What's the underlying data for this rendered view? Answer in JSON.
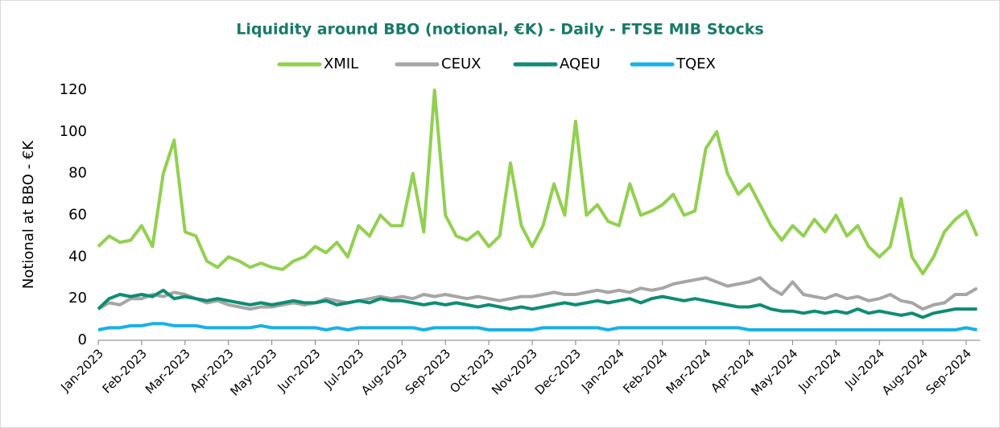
{
  "chart_data": {
    "type": "line",
    "title": "Liquidity around BBO (notional, €K)  - Daily - FTSE MIB Stocks",
    "y_label": "Notional at BBO - €K",
    "categories": [
      "Jan-2023",
      null,
      null,
      null,
      "Feb-2023",
      null,
      null,
      null,
      "Mar-2023",
      null,
      null,
      null,
      "Apr-2023",
      null,
      null,
      null,
      "May-2023",
      null,
      null,
      null,
      "Jun-2023",
      null,
      null,
      null,
      "Jul-2023",
      null,
      null,
      null,
      "Aug-2023",
      null,
      null,
      null,
      "Sep-2023",
      null,
      null,
      null,
      "Oct-2023",
      null,
      null,
      null,
      "Nov-2023",
      null,
      null,
      null,
      "Dec-2023",
      null,
      null,
      null,
      "Jan-2024",
      null,
      null,
      null,
      "Feb-2024",
      null,
      null,
      null,
      "Mar-2024",
      null,
      null,
      null,
      "Apr-2024",
      null,
      null,
      null,
      "May-2024",
      null,
      null,
      null,
      "Jun-2024",
      null,
      null,
      null,
      "Jul-2024",
      null,
      null,
      null,
      "Aug-2024",
      null,
      null,
      null,
      "Sep-2024",
      null
    ],
    "series": [
      {
        "name": "XMIL",
        "color": "#92d050",
        "values": [
          45,
          50,
          47,
          48,
          55,
          45,
          80,
          96,
          52,
          50,
          38,
          35,
          40,
          38,
          35,
          37,
          35,
          34,
          38,
          40,
          45,
          42,
          47,
          40,
          55,
          50,
          60,
          55,
          55,
          80,
          52,
          120,
          60,
          50,
          48,
          52,
          45,
          50,
          85,
          55,
          45,
          55,
          75,
          60,
          105,
          60,
          65,
          57,
          55,
          75,
          60,
          62,
          65,
          70,
          60,
          62,
          92,
          100,
          80,
          70,
          75,
          65,
          55,
          48,
          55,
          50,
          58,
          52,
          60,
          50,
          55,
          45,
          40,
          45,
          68,
          40,
          32,
          40,
          52,
          58,
          62,
          50
        ]
      },
      {
        "name": "CEUX",
        "color": "#a6a6a6",
        "values": [
          15,
          18,
          17,
          20,
          20,
          22,
          21,
          23,
          22,
          20,
          18,
          19,
          17,
          16,
          15,
          16,
          16,
          17,
          18,
          17,
          18,
          20,
          19,
          18,
          19,
          20,
          21,
          20,
          21,
          20,
          22,
          21,
          22,
          21,
          20,
          21,
          20,
          19,
          20,
          21,
          21,
          22,
          23,
          22,
          22,
          23,
          24,
          23,
          24,
          23,
          25,
          24,
          25,
          27,
          28,
          29,
          30,
          28,
          26,
          27,
          28,
          30,
          25,
          22,
          28,
          22,
          21,
          20,
          22,
          20,
          21,
          19,
          20,
          22,
          19,
          18,
          15,
          17,
          18,
          22,
          22,
          25
        ]
      },
      {
        "name": "AQEU",
        "color": "#0f8c74",
        "values": [
          15,
          20,
          22,
          21,
          22,
          21,
          24,
          20,
          21,
          20,
          19,
          20,
          19,
          18,
          17,
          18,
          17,
          18,
          19,
          18,
          18,
          19,
          17,
          18,
          19,
          18,
          20,
          19,
          19,
          18,
          17,
          18,
          17,
          18,
          17,
          16,
          17,
          16,
          15,
          16,
          15,
          16,
          17,
          18,
          17,
          18,
          19,
          18,
          19,
          20,
          18,
          20,
          21,
          20,
          19,
          20,
          19,
          18,
          17,
          16,
          16,
          17,
          15,
          14,
          14,
          13,
          14,
          13,
          14,
          13,
          15,
          13,
          14,
          13,
          12,
          13,
          11,
          13,
          14,
          15,
          15,
          15
        ]
      },
      {
        "name": "TQEX",
        "color": "#1ab0e8",
        "values": [
          5,
          6,
          6,
          7,
          7,
          8,
          8,
          7,
          7,
          7,
          6,
          6,
          6,
          6,
          6,
          7,
          6,
          6,
          6,
          6,
          6,
          5,
          6,
          5,
          6,
          6,
          6,
          6,
          6,
          6,
          5,
          6,
          6,
          6,
          6,
          6,
          5,
          5,
          5,
          5,
          5,
          6,
          6,
          6,
          6,
          6,
          6,
          5,
          6,
          6,
          6,
          6,
          6,
          6,
          6,
          6,
          6,
          6,
          6,
          6,
          5,
          5,
          5,
          5,
          5,
          5,
          5,
          5,
          5,
          5,
          5,
          5,
          5,
          5,
          5,
          5,
          5,
          5,
          5,
          5,
          6,
          5
        ]
      }
    ],
    "ylim": [
      0,
      120
    ],
    "yticks": [
      0,
      20,
      40,
      60,
      80,
      100,
      120
    ],
    "grid": false
  }
}
